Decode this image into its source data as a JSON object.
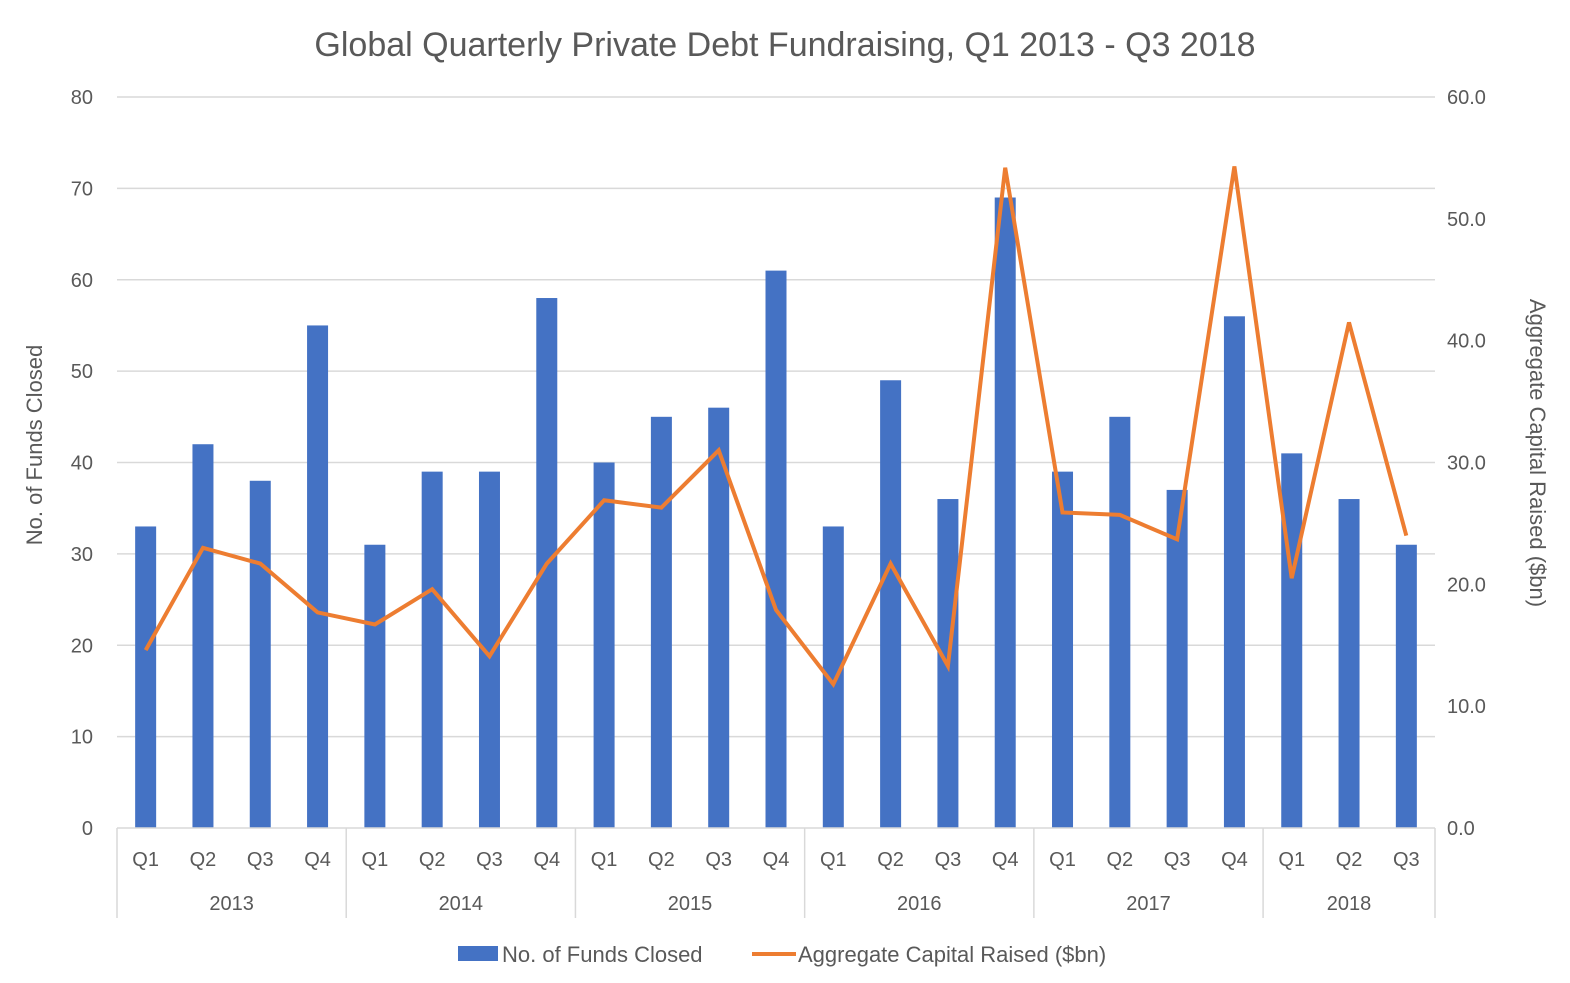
{
  "chart_data": {
    "type": "bar",
    "title": "Global Quarterly Private Debt Fundraising, Q1 2013 - Q3 2018",
    "ylabel": "No. of Funds Closed",
    "y2label": "Aggregate Capital Raised ($bn)",
    "ylim": [
      0,
      80
    ],
    "y2lim": [
      0,
      60
    ],
    "yticks": [
      "0",
      "10",
      "20",
      "30",
      "40",
      "50",
      "60",
      "70",
      "80"
    ],
    "y2ticks": [
      "0.0",
      "10.0",
      "20.0",
      "30.0",
      "40.0",
      "50.0",
      "60.0"
    ],
    "grid": true,
    "legend_position": "bottom",
    "categories": [
      "Q1",
      "Q2",
      "Q3",
      "Q4",
      "Q1",
      "Q2",
      "Q3",
      "Q4",
      "Q1",
      "Q2",
      "Q3",
      "Q4",
      "Q1",
      "Q2",
      "Q3",
      "Q4",
      "Q1",
      "Q2",
      "Q3",
      "Q4",
      "Q1",
      "Q2",
      "Q3"
    ],
    "groups": [
      {
        "label": "2013",
        "count": 4
      },
      {
        "label": "2014",
        "count": 4
      },
      {
        "label": "2015",
        "count": 4
      },
      {
        "label": "2016",
        "count": 4
      },
      {
        "label": "2017",
        "count": 4
      },
      {
        "label": "2018",
        "count": 3
      }
    ],
    "series": [
      {
        "name": "No. of Funds Closed",
        "type": "bar",
        "axis": "left",
        "color": "#4472C4",
        "values": [
          33,
          42,
          38,
          55,
          31,
          39,
          39,
          58,
          40,
          45,
          46,
          61,
          33,
          49,
          36,
          69,
          39,
          45,
          37,
          56,
          41,
          36,
          31
        ]
      },
      {
        "name": "Aggregate Capital Raised ($bn)",
        "type": "line",
        "axis": "right",
        "color": "#ED7D31",
        "values": [
          14.6,
          23.0,
          21.7,
          17.7,
          16.7,
          19.6,
          14.1,
          21.7,
          26.9,
          26.3,
          31.0,
          17.9,
          11.8,
          21.7,
          13.3,
          54.2,
          25.9,
          25.7,
          23.7,
          54.3,
          20.5,
          41.5,
          24.0
        ]
      }
    ]
  }
}
